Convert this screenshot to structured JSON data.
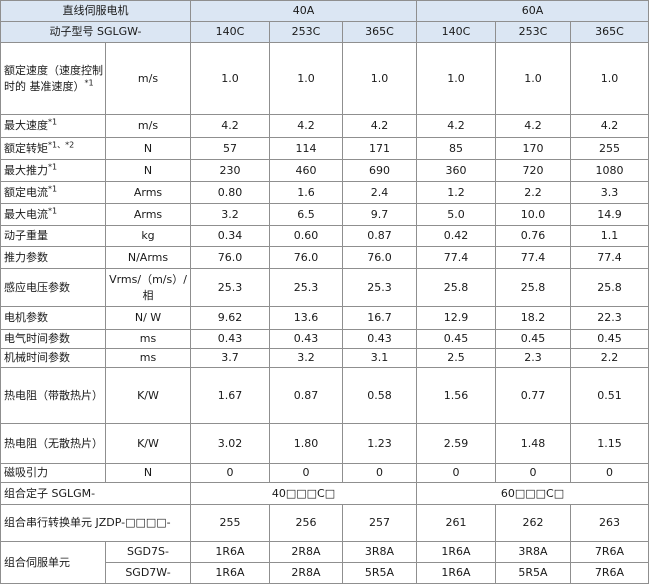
{
  "header": {
    "title_line1": "直线伺服电机",
    "title_line2": "动子型号 SGLGW-",
    "groups": [
      "40A",
      "60A"
    ],
    "models": [
      "140C",
      "253C",
      "365C",
      "140C",
      "253C",
      "365C"
    ]
  },
  "rows": [
    {
      "label": "额定速度（速度控制时的 基准速度）",
      "sup": "*1",
      "unit": "m/s",
      "values": [
        "1.0",
        "1.0",
        "1.0",
        "1.0",
        "1.0",
        "1.0"
      ]
    },
    {
      "label": "最大速度",
      "sup": "*1",
      "unit": "m/s",
      "values": [
        "4.2",
        "4.2",
        "4.2",
        "4.2",
        "4.2",
        "4.2"
      ]
    },
    {
      "label": "额定转矩",
      "sup": "*1、*2",
      "unit": "N",
      "values": [
        "57",
        "114",
        "171",
        "85",
        "170",
        "255"
      ]
    },
    {
      "label": "最大推力",
      "sup": "*1",
      "unit": "N",
      "values": [
        "230",
        "460",
        "690",
        "360",
        "720",
        "1080"
      ]
    },
    {
      "label": "额定电流",
      "sup": "*1",
      "unit": "Arms",
      "values": [
        "0.80",
        "1.6",
        "2.4",
        "1.2",
        "2.2",
        "3.3"
      ]
    },
    {
      "label": "最大电流",
      "sup": "*1",
      "unit": "Arms",
      "values": [
        "3.2",
        "6.5",
        "9.7",
        "5.0",
        "10.0",
        "14.9"
      ]
    },
    {
      "label": "动子重量",
      "sup": "",
      "unit": "kg",
      "values": [
        "0.34",
        "0.60",
        "0.87",
        "0.42",
        "0.76",
        "1.1"
      ]
    },
    {
      "label": "推力参数",
      "sup": "",
      "unit": "N/Arms",
      "values": [
        "76.0",
        "76.0",
        "76.0",
        "77.4",
        "77.4",
        "77.4"
      ]
    },
    {
      "label": "感应电压参数",
      "sup": "",
      "unit": "Vrms/（m/s）/ 相",
      "values": [
        "25.3",
        "25.3",
        "25.3",
        "25.8",
        "25.8",
        "25.8"
      ]
    },
    {
      "label": "电机参数",
      "sup": "",
      "unit": "N/ W",
      "values": [
        "9.62",
        "13.6",
        "16.7",
        "12.9",
        "18.2",
        "22.3"
      ]
    },
    {
      "label": "电气时间参数",
      "sup": "",
      "unit": "ms",
      "values": [
        "0.43",
        "0.43",
        "0.43",
        "0.45",
        "0.45",
        "0.45"
      ]
    },
    {
      "label": "机械时间参数",
      "sup": "",
      "unit": "ms",
      "values": [
        "3.7",
        "3.2",
        "3.1",
        "2.5",
        "2.3",
        "2.2"
      ]
    },
    {
      "label": "热电阻（带散热片）",
      "sup": "",
      "unit": "K/W",
      "values": [
        "1.67",
        "0.87",
        "0.58",
        "1.56",
        "0.77",
        "0.51"
      ]
    },
    {
      "label": "热电阻（无散热片）",
      "sup": "",
      "unit": "K/W",
      "values": [
        "3.02",
        "1.80",
        "1.23",
        "2.59",
        "1.48",
        "1.15"
      ]
    },
    {
      "label": "磁吸引力",
      "sup": "",
      "unit": "N",
      "values": [
        "0",
        "0",
        "0",
        "0",
        "0",
        "0"
      ]
    }
  ],
  "stator": {
    "label": "组合定子 SGLGM-",
    "values": [
      "40□□□C□",
      "60□□□C□"
    ]
  },
  "converter": {
    "label": "组合串行转换单元 JZDP-□□□□-",
    "values": [
      "255",
      "256",
      "257",
      "261",
      "262",
      "263"
    ]
  },
  "servo": {
    "label": "组合伺服单元",
    "rows": [
      {
        "series": "SGD7S-",
        "values": [
          "1R6A",
          "2R8A",
          "3R8A",
          "1R6A",
          "3R8A",
          "7R6A"
        ]
      },
      {
        "series": "SGD7W-",
        "values": [
          "1R6A",
          "2R8A",
          "5R5A",
          "1R6A",
          "5R5A",
          "7R6A"
        ]
      }
    ]
  }
}
